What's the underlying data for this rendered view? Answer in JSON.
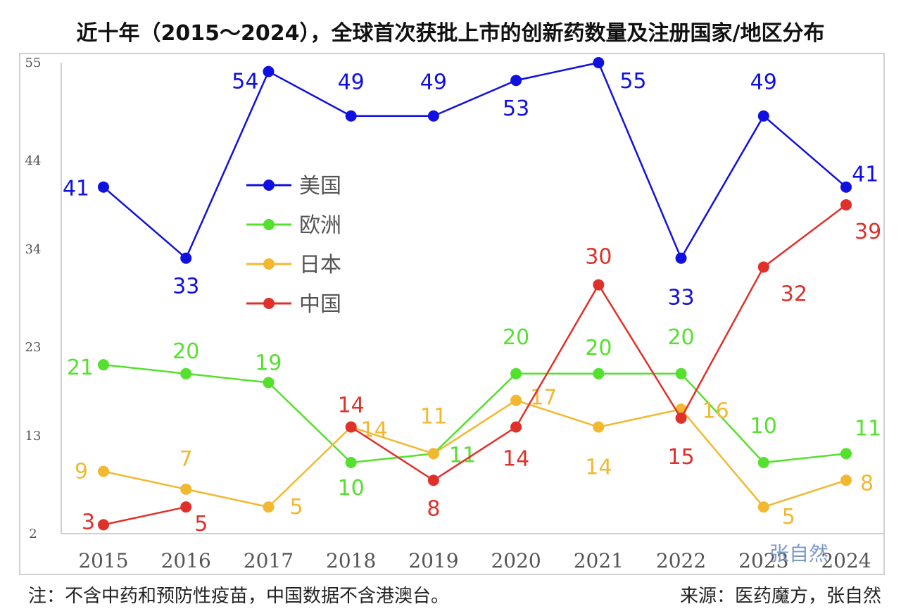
{
  "title": "近十年（2015～2024），全球首次获批上市的创新药数量及注册国家/地区分布",
  "footnote": "注：不含中药和预防性疫苗，中国数据不含港澳台。",
  "source": "来源：医药魔方，张自然",
  "watermark": "张自然",
  "chart_data": {
    "type": "line",
    "title": "近十年（2015～2024），全球首次获批上市的创新药数量及注册国家/地区分布",
    "x": [
      "2015",
      "2016",
      "2017",
      "2018",
      "2019",
      "2020",
      "2021",
      "2022",
      "2023",
      "2024"
    ],
    "yticks": [
      2,
      13,
      23,
      34,
      44,
      55
    ],
    "ylim": [
      2,
      55
    ],
    "grid": false,
    "legend": "left-center",
    "series": [
      {
        "name": "美国",
        "color": "#1010e0",
        "values": [
          41,
          33,
          54,
          49,
          49,
          53,
          55,
          33,
          49,
          41
        ]
      },
      {
        "name": "欧洲",
        "color": "#55e02e",
        "values": [
          21,
          20,
          19,
          10,
          11,
          20,
          20,
          20,
          10,
          11
        ]
      },
      {
        "name": "日本",
        "color": "#f2b830",
        "values": [
          9,
          7,
          5,
          14,
          11,
          17,
          14,
          16,
          5,
          8
        ]
      },
      {
        "name": "中国",
        "color": "#e0302a",
        "values": [
          3,
          5,
          null,
          14,
          8,
          14,
          30,
          15,
          32,
          39
        ]
      }
    ]
  }
}
